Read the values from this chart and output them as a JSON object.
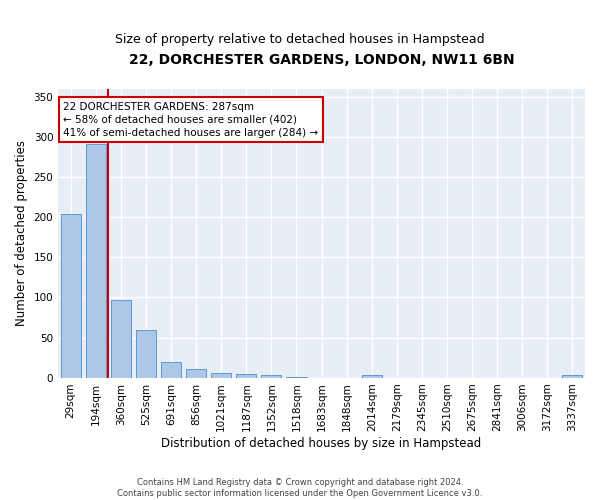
{
  "title": "22, DORCHESTER GARDENS, LONDON, NW11 6BN",
  "subtitle": "Size of property relative to detached houses in Hampstead",
  "xlabel": "Distribution of detached houses by size in Hampstead",
  "ylabel": "Number of detached properties",
  "categories": [
    "29sqm",
    "194sqm",
    "360sqm",
    "525sqm",
    "691sqm",
    "856sqm",
    "1021sqm",
    "1187sqm",
    "1352sqm",
    "1518sqm",
    "1683sqm",
    "1848sqm",
    "2014sqm",
    "2179sqm",
    "2345sqm",
    "2510sqm",
    "2675sqm",
    "2841sqm",
    "3006sqm",
    "3172sqm",
    "3337sqm"
  ],
  "values": [
    204,
    291,
    97,
    60,
    20,
    11,
    6,
    5,
    4,
    1,
    0,
    0,
    3,
    0,
    0,
    0,
    0,
    0,
    0,
    0,
    3
  ],
  "bar_color": "#aec6e8",
  "bar_edge_color": "#5b9bd5",
  "vline_color": "#cc0000",
  "vline_x": 1.5,
  "annotation_text": "22 DORCHESTER GARDENS: 287sqm\n← 58% of detached houses are smaller (402)\n41% of semi-detached houses are larger (284) →",
  "annotation_box_color": "#ffffff",
  "annotation_box_edge_color": "#cc0000",
  "ylim": [
    0,
    360
  ],
  "yticks": [
    0,
    50,
    100,
    150,
    200,
    250,
    300,
    350
  ],
  "xlim": [
    -0.5,
    20.5
  ],
  "background_color": "#e8eef6",
  "grid_color": "#ffffff",
  "footer": "Contains HM Land Registry data © Crown copyright and database right 2024.\nContains public sector information licensed under the Open Government Licence v3.0.",
  "title_fontsize": 10,
  "subtitle_fontsize": 9,
  "xlabel_fontsize": 8.5,
  "ylabel_fontsize": 8.5,
  "tick_fontsize": 7.5,
  "annotation_fontsize": 7.5,
  "footer_fontsize": 6
}
